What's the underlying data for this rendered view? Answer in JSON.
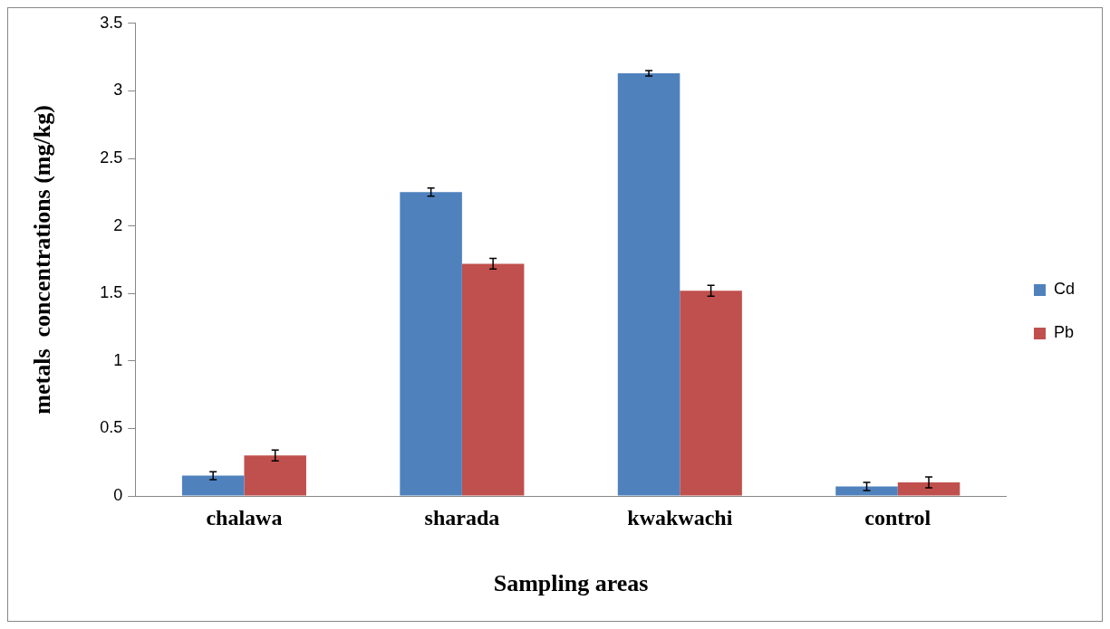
{
  "chart_data": {
    "type": "bar",
    "xlabel": "Sampling areas",
    "ylabel": "metals  concentrations (mg/kg)",
    "categories": [
      "chalawa",
      "sharada",
      "kwakwachi",
      "control"
    ],
    "series": [
      {
        "name": "Cd",
        "color": "#4f81bd",
        "values": [
          0.15,
          2.25,
          3.13,
          0.07
        ],
        "errors": [
          0.03,
          0.03,
          0.02,
          0.03
        ]
      },
      {
        "name": "Pb",
        "color": "#c0504d",
        "values": [
          0.3,
          1.72,
          1.52,
          0.1
        ],
        "errors": [
          0.04,
          0.04,
          0.04,
          0.04
        ]
      }
    ],
    "ylim": [
      0,
      3.5
    ],
    "yticks": [
      0,
      0.5,
      1,
      1.5,
      2,
      2.5,
      3,
      3.5
    ],
    "grid": false,
    "legend": "right"
  }
}
